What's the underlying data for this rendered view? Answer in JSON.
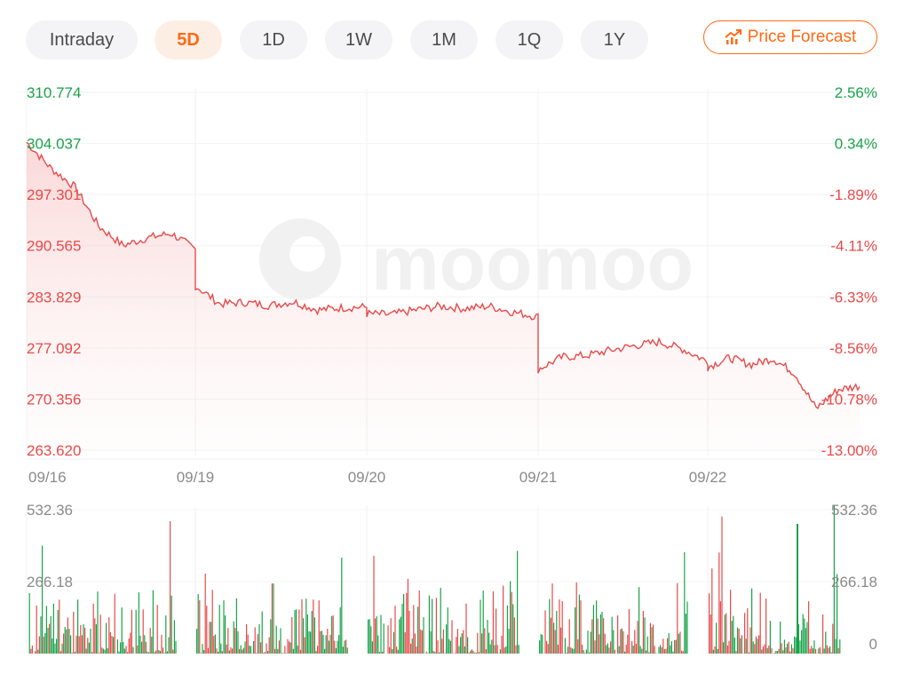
{
  "tabs": [
    {
      "label": "Intraday",
      "active": false
    },
    {
      "label": "5D",
      "active": true
    },
    {
      "label": "1D",
      "active": false
    },
    {
      "label": "1W",
      "active": false
    },
    {
      "label": "1M",
      "active": false
    },
    {
      "label": "1Q",
      "active": false
    },
    {
      "label": "1Y",
      "active": false
    }
  ],
  "forecast_button": {
    "label": "Price Forecast",
    "icon": "trend-chart-icon"
  },
  "watermark": "moomoo",
  "colors": {
    "accent": "#ff6a13",
    "down": "#e84a4a",
    "up": "#1aa34a",
    "axis_text": "#8a8a8a"
  },
  "chart_data": [
    {
      "type": "line",
      "name": "price",
      "x_ticks": [
        "09/16",
        "09/19",
        "09/20",
        "09/21",
        "09/22"
      ],
      "y_ticks": [
        310.774,
        304.037,
        297.301,
        290.565,
        283.829,
        277.092,
        270.356,
        263.62
      ],
      "y_ticks_pct": [
        "2.56%",
        "0.34%",
        "-1.89%",
        "-4.11%",
        "-6.33%",
        "-8.56%",
        "-10.78%",
        "-13.00%"
      ],
      "ylim": [
        263.62,
        310.774
      ],
      "reference_price": 303.0,
      "series": [
        {
          "x": [
            "09/16 09:30",
            "09/16 10:00",
            "09/16 11:00",
            "09/16 12:00",
            "09/16 13:00",
            "09/16 14:00",
            "09/16 15:00",
            "09/16 16:00",
            "09/19 09:30",
            "09/19 10:00",
            "09/19 11:00",
            "09/19 12:00",
            "09/19 13:00",
            "09/19 14:00",
            "09/19 15:00",
            "09/19 16:00",
            "09/20 09:30",
            "09/20 10:00",
            "09/20 11:00",
            "09/20 12:00",
            "09/20 13:00",
            "09/20 14:00",
            "09/20 15:00",
            "09/20 16:00",
            "09/21 09:30",
            "09/21 10:00",
            "09/21 11:00",
            "09/21 12:00",
            "09/21 13:00",
            "09/21 14:00",
            "09/21 15:00",
            "09/21 16:00",
            "09/22 09:30",
            "09/22 10:00",
            "09/22 11:00",
            "09/22 12:00",
            "09/22 13:00",
            "09/22 14:00",
            "09/22 15:00",
            "09/22 16:00"
          ],
          "values": [
            304.2,
            300.8,
            298.3,
            293.1,
            290.6,
            291.6,
            292.2,
            290.1,
            285.3,
            282.9,
            283.1,
            282.7,
            283.2,
            282.1,
            282.4,
            282.5,
            281.6,
            281.5,
            282.1,
            282.6,
            282.3,
            282.6,
            281.8,
            281.2,
            274.3,
            275.9,
            276.1,
            276.8,
            277.4,
            277.9,
            276.9,
            275.3,
            274.6,
            275.8,
            274.9,
            275.7,
            273.8,
            269.1,
            271.6,
            272.1
          ]
        }
      ]
    },
    {
      "type": "bar",
      "name": "volume",
      "y_ticks": [
        532.36,
        266.18,
        0
      ],
      "ylim": [
        0,
        532.36
      ],
      "peak_value": 480
    }
  ]
}
